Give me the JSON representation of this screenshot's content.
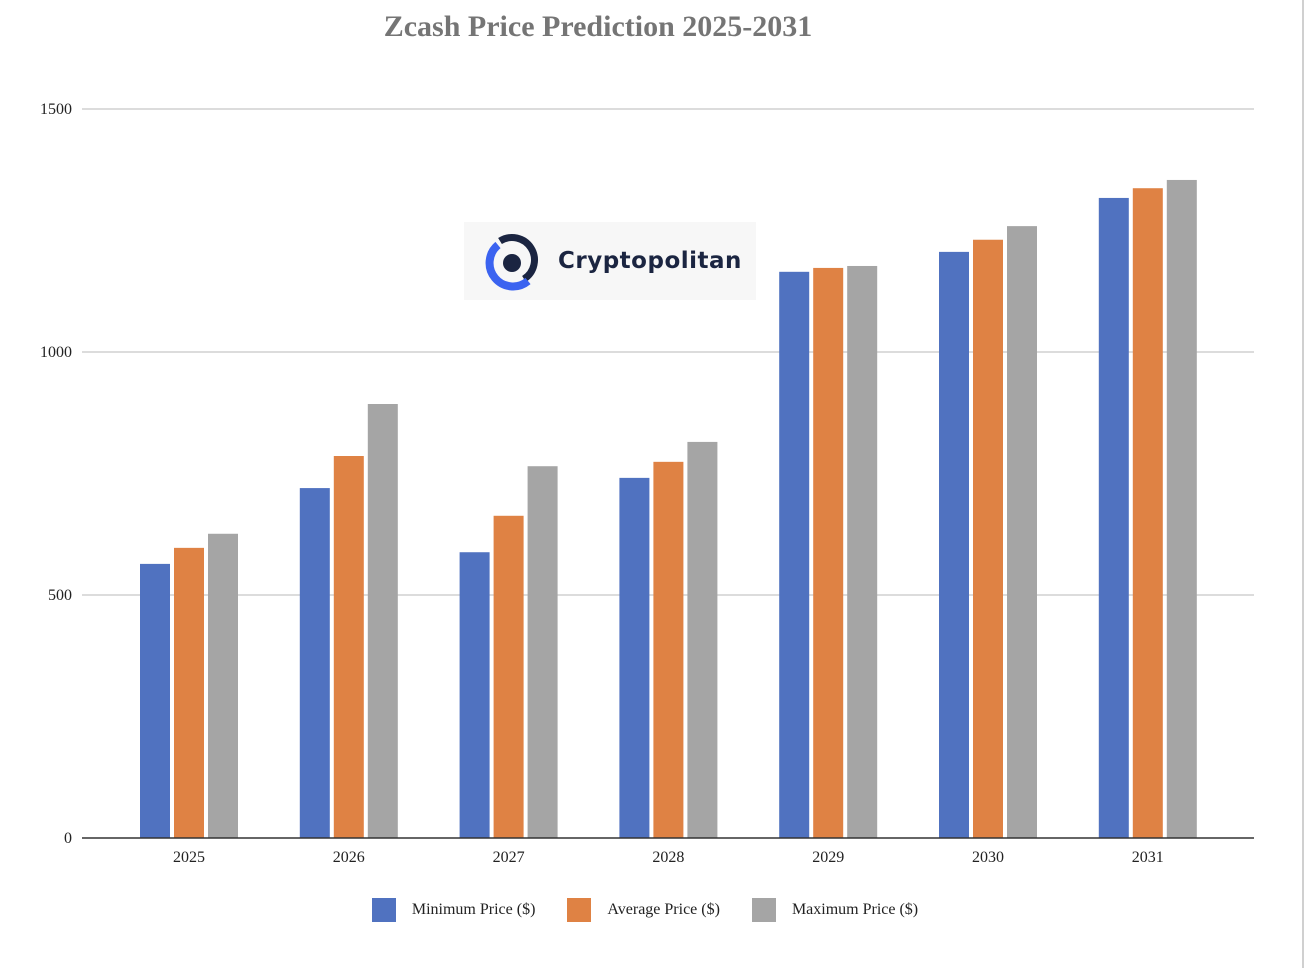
{
  "chart_data": {
    "type": "bar",
    "title": "Zcash Price Prediction 2025-2031",
    "xlabel": "",
    "ylabel": "",
    "categories": [
      "2025",
      "2026",
      "2027",
      "2028",
      "2029",
      "2030",
      "2031"
    ],
    "ylim": [
      0,
      1500
    ],
    "yticks": [
      0,
      500,
      1000,
      1500
    ],
    "grid": true,
    "legend_position": "bottom",
    "series": [
      {
        "name": "Minimum Price ($)",
        "color": "#5072c0",
        "values": [
          564,
          720,
          588,
          741,
          1165,
          1206,
          1317
        ]
      },
      {
        "name": "Average Price ($)",
        "color": "#df8244",
        "values": [
          597,
          786,
          663,
          774,
          1173,
          1231,
          1337
        ]
      },
      {
        "name": "Maximum Price ($)",
        "color": "#a5a5a5",
        "values": [
          626,
          893,
          765,
          815,
          1177,
          1259,
          1354
        ]
      }
    ]
  },
  "watermark": {
    "text": "Cryptopolitan",
    "color": "#1b2541",
    "accent": "#3b63f0"
  }
}
